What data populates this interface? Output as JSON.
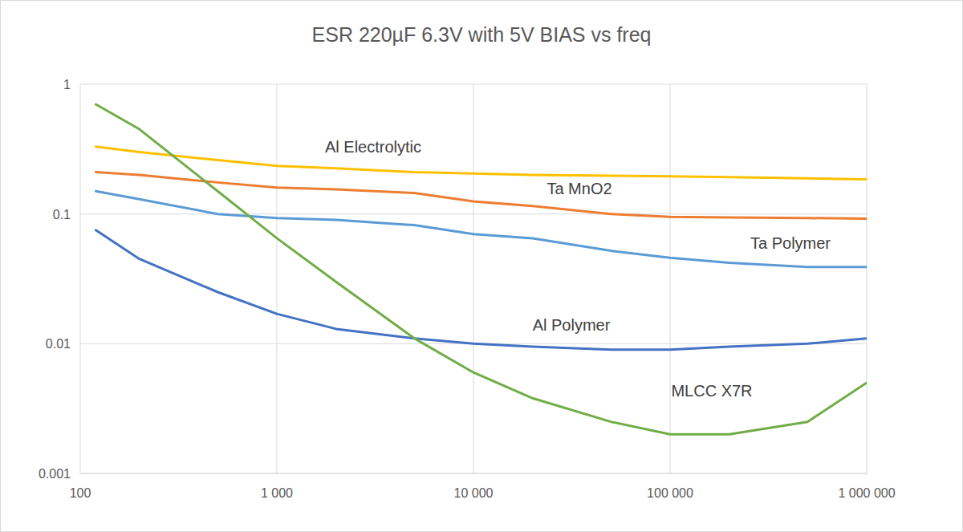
{
  "chart_data": {
    "type": "line",
    "title": "ESR 220µF 6.3V with 5V BIAS vs freq",
    "log": true,
    "grid": true,
    "xlim": [
      100,
      1000000
    ],
    "ylim": [
      0.001,
      1
    ],
    "xticks": [
      100,
      {
        "value": 1000,
        "label": "1 000"
      },
      {
        "value": 10000,
        "label": "10 000"
      },
      {
        "value": 100000,
        "label": "100 000"
      },
      {
        "value": 1000000,
        "label": "1 000 000"
      }
    ],
    "yticks": [
      0.001,
      0.01,
      0.1,
      1
    ],
    "x": [
      120,
      200,
      500,
      1000,
      2000,
      5000,
      10000,
      20000,
      50000,
      100000,
      200000,
      500000,
      1000000
    ],
    "series": [
      {
        "name": "Al Electrolytic",
        "color": "#ffc000",
        "values": [
          0.33,
          0.3,
          0.26,
          0.235,
          0.225,
          0.21,
          0.205,
          0.2,
          0.197,
          0.195,
          0.192,
          0.188,
          0.185
        ]
      },
      {
        "name": "Ta MnO2",
        "color": "#ed7d31",
        "values": [
          0.21,
          0.2,
          0.175,
          0.16,
          0.155,
          0.145,
          0.125,
          0.115,
          0.1,
          0.095,
          0.094,
          0.093,
          0.092
        ]
      },
      {
        "name": "Ta Polymer",
        "color": "#5b9bd5",
        "values": [
          0.15,
          0.13,
          0.1,
          0.093,
          0.09,
          0.082,
          0.07,
          0.065,
          0.052,
          0.046,
          0.042,
          0.039,
          0.039
        ]
      },
      {
        "name": "Al Polymer",
        "color": "#4472c4",
        "values": [
          0.075,
          0.045,
          0.025,
          0.017,
          0.013,
          0.011,
          0.01,
          0.0095,
          0.009,
          0.009,
          0.0095,
          0.01,
          0.011
        ]
      },
      {
        "name": "MLCC X7R",
        "color": "#70ad47",
        "values": [
          0.7,
          0.45,
          0.15,
          0.065,
          0.03,
          0.011,
          0.006,
          0.0038,
          0.0025,
          0.002,
          0.002,
          0.0025,
          0.005
        ]
      }
    ]
  }
}
